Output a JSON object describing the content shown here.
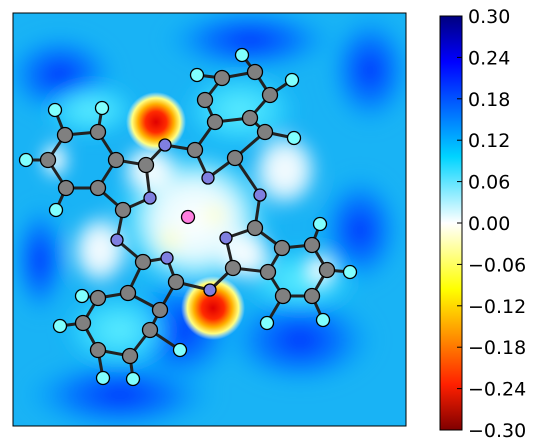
{
  "chart_data": {
    "type": "heatmap",
    "title": "",
    "xlabel": "",
    "ylabel": "",
    "colormap": "jet",
    "value_range": [
      -0.3,
      0.3
    ],
    "colorbar": {
      "position": "right",
      "ticks": [
        0.3,
        0.24,
        0.18,
        0.12,
        0.06,
        0.0,
        -0.06,
        -0.12,
        -0.18,
        -0.24,
        -0.3
      ],
      "tick_labels": [
        "0.30",
        "0.24",
        "0.18",
        "0.12",
        "0.06",
        "0.00",
        "−0.06",
        "−0.12",
        "−0.18",
        "−0.24",
        "−0.30"
      ]
    },
    "colors": {
      "carbon": "#808080",
      "nitrogen": "#7f7fe0",
      "hydrogen": "#7fffff",
      "metal_center": "#ff7fe0",
      "bond": "#222222"
    },
    "notable_values": [
      {
        "region": "upper-left red lobe",
        "value": -0.3
      },
      {
        "region": "lower-right red lobe",
        "value": -0.3
      },
      {
        "region": "outer background",
        "value": 0.18
      }
    ]
  }
}
